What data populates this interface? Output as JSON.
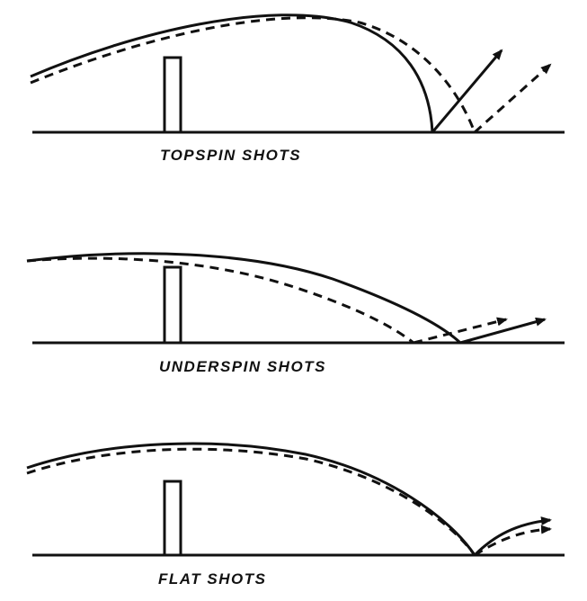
{
  "panels": [
    {
      "id": "topspin",
      "label": "TOPSPIN SHOTS"
    },
    {
      "id": "underspin",
      "label": "UNDERSPIN SHOTS"
    },
    {
      "id": "flat",
      "label": "FLAT SHOTS"
    }
  ],
  "colors": {
    "stroke": "#111111",
    "background": "#ffffff"
  }
}
